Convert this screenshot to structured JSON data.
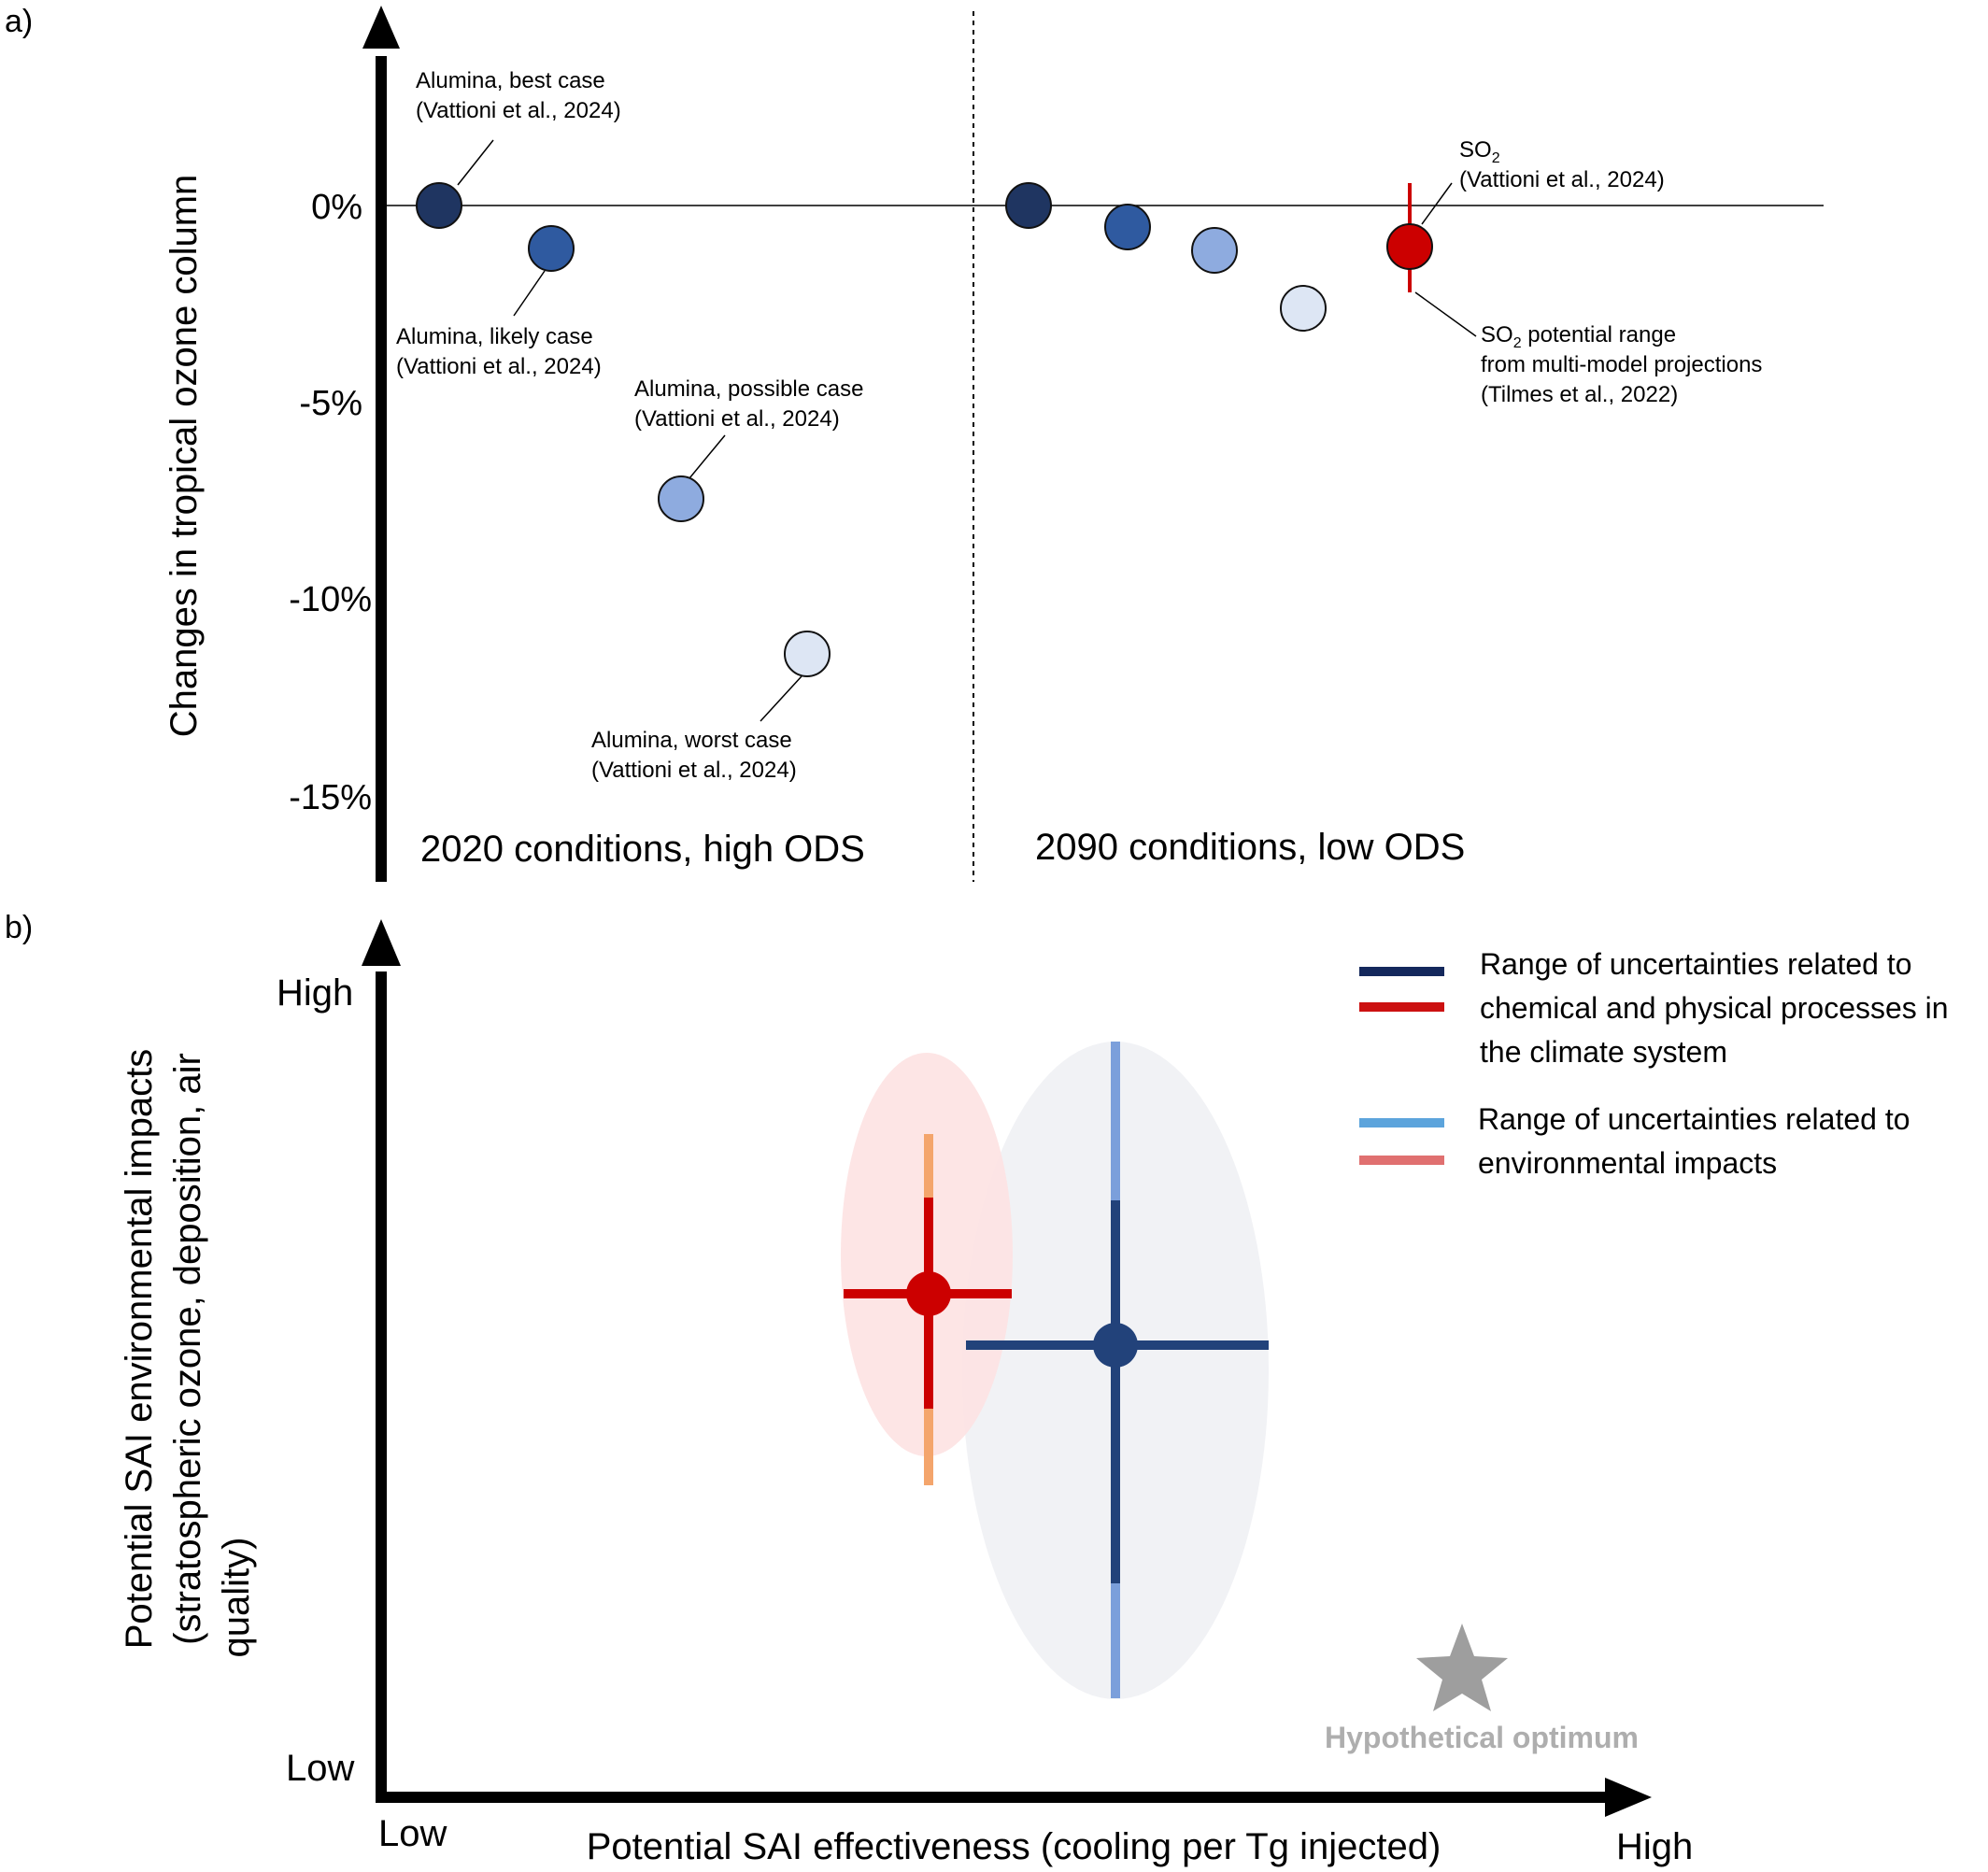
{
  "panel_a": {
    "label": "a)",
    "ylabel": "Changes in tropical ozone column",
    "ytick_labels": [
      "0%",
      "-5%",
      "-10%",
      "-15%"
    ],
    "region_labels": [
      "2020 conditions, high ODS",
      "2090 conditions, low ODS"
    ],
    "annotations": {
      "best": [
        "Alumina, best case",
        "(Vattioni et al., 2024)"
      ],
      "likely": [
        "Alumina, likely case",
        "(Vattioni et al., 2024)"
      ],
      "possible": [
        "Alumina, possible case",
        "(Vattioni et al., 2024)"
      ],
      "worst": [
        "Alumina, worst case",
        "(Vattioni et al., 2024)"
      ],
      "so2": [
        "SO",
        "2",
        "(Vattioni et al., 2024)"
      ],
      "so2_range": [
        "SO",
        "2",
        " potential range",
        "from multi-model projections",
        "(Tilmes et al., 2022)"
      ]
    },
    "colors": {
      "best": "#1f3561",
      "likely": "#2f5aa0",
      "possible": "#8eabdf",
      "worst": "#dde6f4",
      "so2": "#cc0000"
    }
  },
  "panel_b": {
    "label": "b)",
    "ylabel_lines": [
      "Potential SAI environmental impacts",
      "(stratospheric ozone, deposition, air",
      "quality)"
    ],
    "xlabel": "Potential SAI effectiveness (cooling per Tg injected)",
    "y_low": "Low",
    "y_high": "High",
    "x_low": "Low",
    "x_high": "High",
    "legend": [
      {
        "lines": [
          "Range of uncertainties related to",
          "chemical and physical processes in",
          "the climate system"
        ],
        "colors": [
          "#14285c",
          "#cc1111"
        ]
      },
      {
        "lines": [
          "Range of uncertainties related to",
          "environmental impacts"
        ],
        "colors": [
          "#5ca4dc",
          "#e07070"
        ]
      }
    ],
    "optimum_label": "Hypothetical optimum",
    "colors": {
      "red": "#cc0000",
      "orange": "#f4a56c",
      "red_ellipse": "#fde3e3",
      "blue": "#22427a",
      "light_blue": "#7b9fdb",
      "grey_ellipse": "#f1f2f5",
      "star": "#9e9e9e"
    }
  },
  "chart_data": [
    {
      "type": "scatter",
      "title": "",
      "ylabel": "Changes in tropical ozone column",
      "ylim": [
        -17,
        5
      ],
      "yticks": [
        0,
        -5,
        -10,
        -15
      ],
      "ytick_labels": [
        "0%",
        "-5%",
        "-10%",
        "-15%"
      ],
      "series": [
        {
          "name": "2020 conditions, high ODS",
          "x": [
            0.03,
            0.21,
            0.42,
            0.63
          ],
          "y": [
            0,
            -1.1,
            -7.5,
            -11.4
          ],
          "labels": [
            "Alumina, best case",
            "Alumina, likely case",
            "Alumina, possible case",
            "Alumina, worst case"
          ]
        },
        {
          "name": "2090 conditions, low ODS",
          "x": [
            0.03,
            0.16,
            0.28,
            0.4
          ],
          "y": [
            0,
            -0.6,
            -1.2,
            -2.6
          ],
          "labels": [
            "Alumina, best case",
            "Alumina, likely case",
            "Alumina, possible case",
            "Alumina, worst case"
          ]
        },
        {
          "name": "SO2",
          "x": [
            0.53
          ],
          "y": [
            -1.0
          ],
          "yerr": [
            [
              -2.2,
              0.6
            ]
          ]
        }
      ],
      "grid": false
    },
    {
      "type": "scatter",
      "title": "",
      "xlabel": "Potential SAI effectiveness (cooling per Tg injected)",
      "ylabel": "Potential SAI environmental impacts (stratospheric ozone, deposition, air quality)",
      "xlim": [
        0,
        1
      ],
      "ylim": [
        0,
        1
      ],
      "x_ticks": [
        "Low",
        "High"
      ],
      "y_ticks": [
        "Low",
        "High"
      ],
      "series": [
        {
          "name": "red",
          "x": [
            0.43
          ],
          "y": [
            0.63
          ],
          "x_range": [
            0.36,
            0.49
          ],
          "y_range_climate": [
            0.46,
            0.81
          ],
          "y_range_env": [
            0.38,
            0.85
          ]
        },
        {
          "name": "blue",
          "x": [
            0.58
          ],
          "y": [
            0.56
          ],
          "x_range": [
            0.46,
            0.7
          ],
          "y_range_climate": [
            0.24,
            0.76
          ],
          "y_range_env": [
            0.09,
            0.97
          ]
        },
        {
          "name": "Hypothetical optimum",
          "x": [
            0.87
          ],
          "y": [
            0.13
          ]
        }
      ],
      "grid": false
    }
  ]
}
